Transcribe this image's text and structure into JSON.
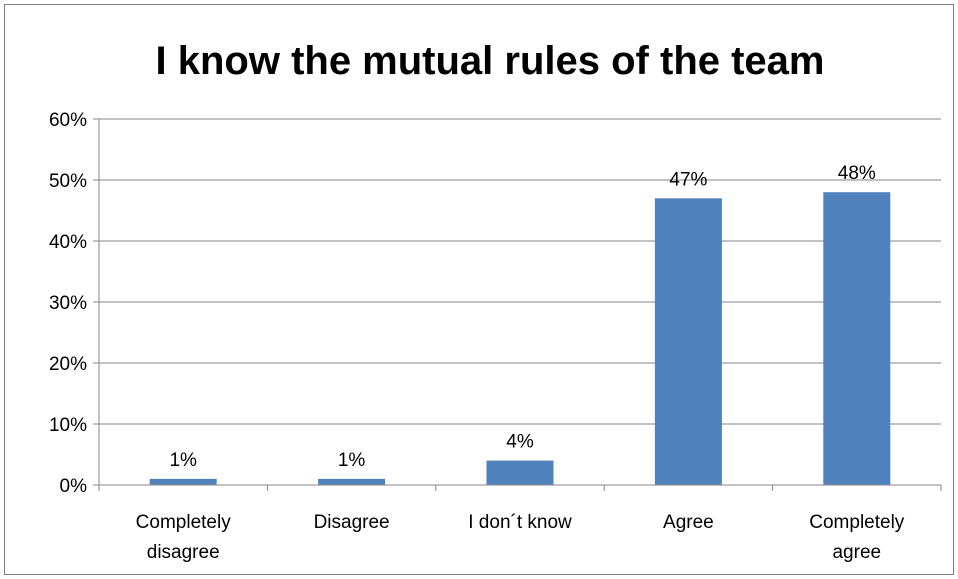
{
  "chart_data": {
    "type": "bar",
    "title": "I know the mutual rules of the team",
    "xlabel": "",
    "ylabel": "",
    "categories": [
      [
        "Completely",
        "disagree"
      ],
      [
        "Disagree"
      ],
      [
        "I don´t know"
      ],
      [
        "Agree"
      ],
      [
        "Completely",
        "agree"
      ]
    ],
    "values": [
      1,
      1,
      4,
      47,
      48
    ],
    "data_labels": [
      "1%",
      "1%",
      "4%",
      "47%",
      "48%"
    ],
    "ylim": [
      0,
      60
    ],
    "yticks": [
      0,
      10,
      20,
      30,
      40,
      50,
      60
    ],
    "ytick_labels": [
      "0%",
      "10%",
      "20%",
      "30%",
      "40%",
      "50%",
      "60%"
    ],
    "grid": true,
    "legend": false,
    "colors": {
      "bar": "#4f81bd",
      "grid": "#868686",
      "axis": "#868686",
      "border": "#7f7f7f"
    }
  }
}
